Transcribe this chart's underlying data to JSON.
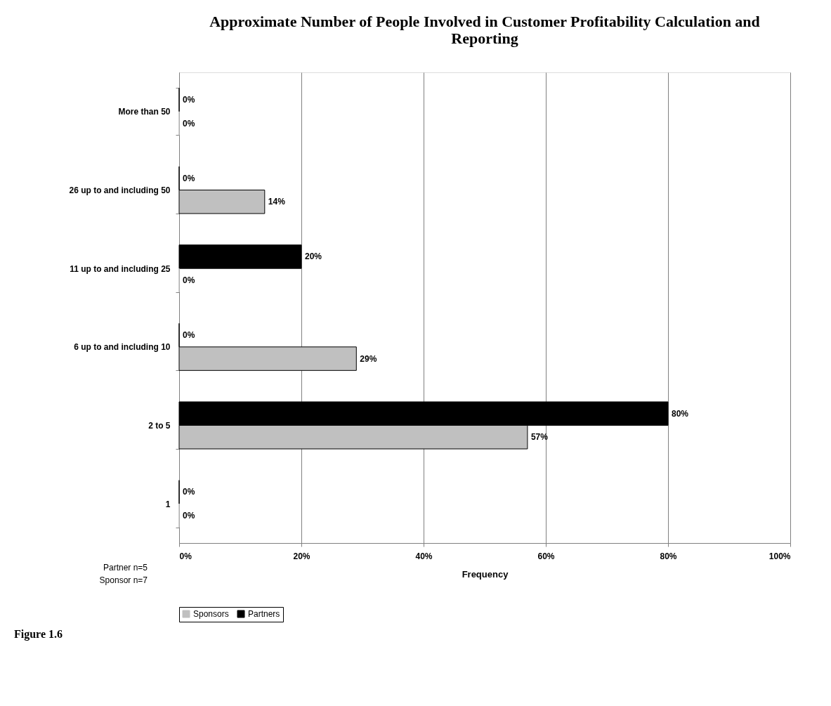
{
  "chart_data": {
    "type": "bar",
    "orientation": "horizontal",
    "title": "Approximate Number of People Involved in Customer Profitability Calculation and Reporting",
    "xlabel": "Frequency",
    "categories": [
      "More than 50",
      "26 up to and including 50",
      "11 up to and including 25",
      "6 up to and including 10",
      "2 to 5",
      "1"
    ],
    "series": [
      {
        "name": "Partners",
        "color": "#000000",
        "values": [
          0,
          0,
          20,
          0,
          80,
          0
        ],
        "value_labels": [
          "0%",
          "0%",
          "20%",
          "0%",
          "80%",
          "0%"
        ]
      },
      {
        "name": "Sponsors",
        "color": "#c0c0c0",
        "values": [
          0,
          14,
          0,
          29,
          57,
          0
        ],
        "value_labels": [
          "0%",
          "14%",
          "0%",
          "29%",
          "57%",
          "0%"
        ]
      }
    ],
    "xlim": [
      0,
      100
    ],
    "xticks": [
      {
        "value": 0,
        "label": "0%"
      },
      {
        "value": 20,
        "label": "20%"
      },
      {
        "value": 40,
        "label": "40%"
      },
      {
        "value": 60,
        "label": "60%"
      },
      {
        "value": 80,
        "label": "80%"
      },
      {
        "value": 100,
        "label": "100%"
      }
    ],
    "grid": "x",
    "legend": "bottom",
    "annotations": [
      "Partner n=5",
      "Sponsor n=7",
      "Figure 1.6"
    ]
  }
}
